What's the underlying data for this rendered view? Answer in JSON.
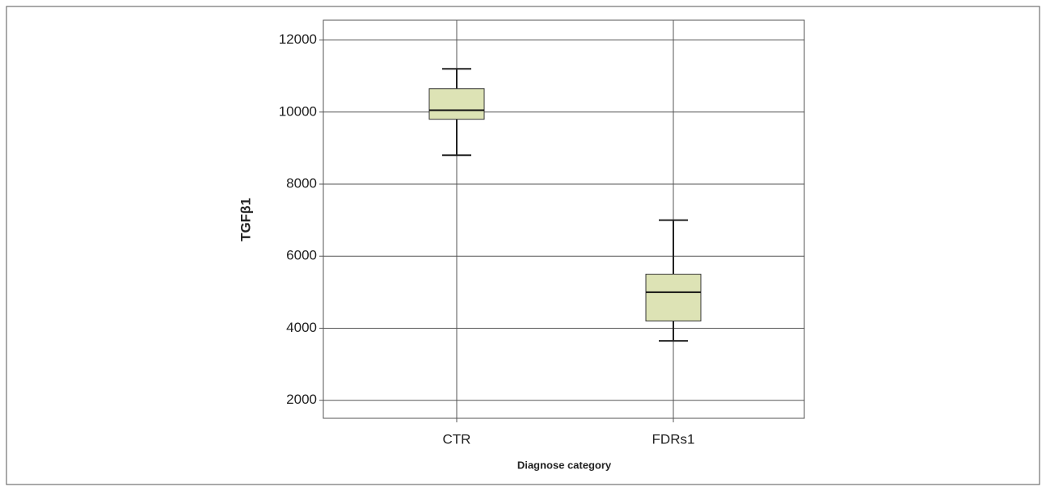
{
  "chart_data": {
    "type": "box",
    "x_label": "Diagnose category",
    "y_label": "TGFβ1",
    "categories": [
      "CTR",
      "FDRs1"
    ],
    "boxes": [
      {
        "low": 8800,
        "q1": 9800,
        "median": 10050,
        "q3": 10650,
        "high": 11200
      },
      {
        "low": 3650,
        "q1": 4200,
        "median": 5000,
        "q3": 5500,
        "high": 7000
      }
    ],
    "color": "#dde3b5",
    "ylim": [
      1500,
      12550
    ],
    "yticks": [
      2000,
      4000,
      6000,
      8000,
      10000,
      12000
    ],
    "grid": true
  }
}
